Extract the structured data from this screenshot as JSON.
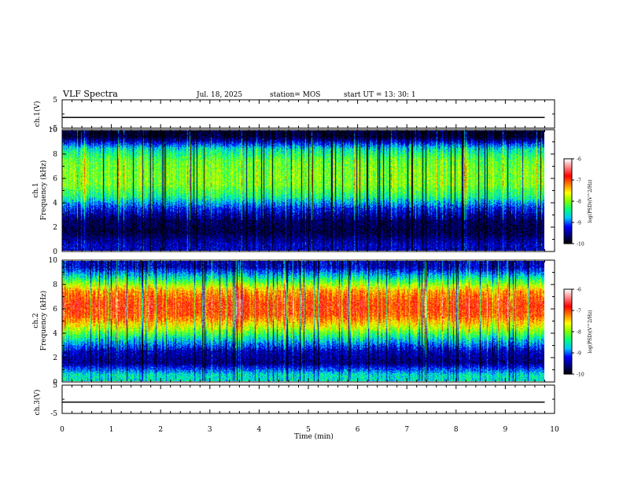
{
  "header": {
    "title": "VLF Spectra",
    "date": "Jul. 18, 2025",
    "station": "station= MOS",
    "start_ut": "start UT =  13: 30: 1"
  },
  "chart_data": [
    {
      "type": "line",
      "panel": "ch1-waveform",
      "ylabel": "ch.1(V)",
      "ylim": [
        -5,
        5
      ],
      "y_ticks": [
        "5",
        "-5"
      ],
      "x": [
        0,
        9.8
      ],
      "values": [
        -1.2,
        -1.2
      ]
    },
    {
      "type": "heatmap",
      "panel": "ch1-spectrogram",
      "ylabel_top": "ch.1",
      "ylabel": "Frequency (kHz)",
      "ylim": [
        0,
        10
      ],
      "y_ticks": [
        "0",
        "2",
        "4",
        "6",
        "8",
        "10"
      ],
      "xlim": [
        0,
        9.8
      ],
      "colorbar": {
        "label": "log(PSD)(V^2/Hz)",
        "ticks": [
          "-6",
          "-7",
          "-8",
          "-9",
          "-10"
        ],
        "range": [
          -10,
          -6
        ]
      },
      "band_profile_khz": [
        0.5,
        1.5,
        2.5,
        3.5,
        4.5,
        5.5,
        6.5,
        7.5,
        8.5,
        9.5
      ],
      "band_profile_log_psd": [
        -9.4,
        -9.8,
        -9.7,
        -9.2,
        -8.4,
        -8.0,
        -8.0,
        -8.1,
        -8.6,
        -9.9
      ]
    },
    {
      "type": "heatmap",
      "panel": "ch2-spectrogram",
      "ylabel_top": "ch.2",
      "ylabel": "Frequency (kHz)",
      "ylim": [
        0,
        10
      ],
      "y_ticks": [
        "0",
        "2",
        "4",
        "6",
        "8",
        "10"
      ],
      "xlim": [
        0,
        9.8
      ],
      "colorbar": {
        "label": "log(PSD)(V^2/Hz)",
        "ticks": [
          "-6",
          "-7",
          "-8",
          "-9",
          "-10"
        ],
        "range": [
          -10,
          -6
        ]
      },
      "band_profile_khz": [
        0.5,
        1.5,
        2.5,
        3.5,
        4.5,
        5.5,
        6.5,
        7.5,
        8.5,
        9.5
      ],
      "band_profile_log_psd": [
        -8.6,
        -9.6,
        -9.4,
        -8.6,
        -7.7,
        -7.0,
        -6.9,
        -7.3,
        -8.4,
        -9.4
      ]
    },
    {
      "type": "line",
      "panel": "ch3-waveform",
      "ylabel": "ch.3(V)",
      "ylim": [
        -5,
        5
      ],
      "y_ticks": [
        "5",
        "-5"
      ],
      "x": [
        0,
        9.8
      ],
      "values": [
        -1.0,
        -1.0
      ]
    }
  ],
  "x_axis": {
    "label": "Time (min)",
    "xlim": [
      0,
      10
    ],
    "ticks": [
      "0",
      "1",
      "2",
      "3",
      "4",
      "5",
      "6",
      "7",
      "8",
      "9",
      "10"
    ]
  },
  "colormap": [
    "#000000",
    "#000080",
    "#0000ff",
    "#00c8ff",
    "#00ff80",
    "#80ff00",
    "#ffff00",
    "#ff8000",
    "#ff0000",
    "#ff8080",
    "#ffffff"
  ]
}
